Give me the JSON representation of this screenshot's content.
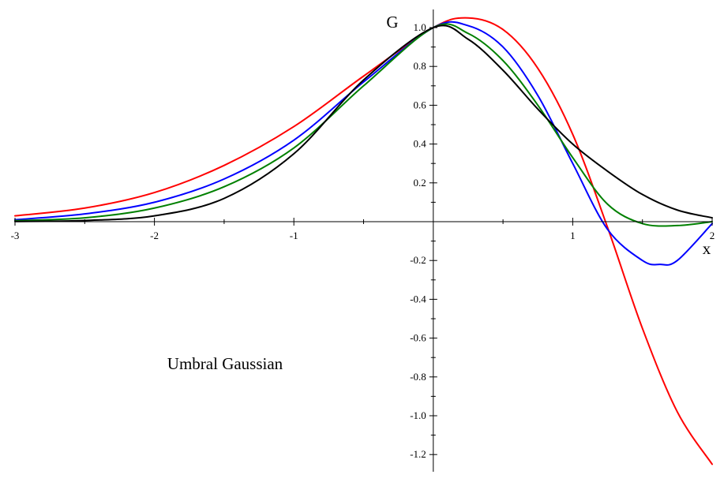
{
  "chart_data": {
    "type": "line",
    "title": "",
    "xlabel": "x",
    "ylabel": "G",
    "xlim": [
      -3,
      2
    ],
    "ylim": [
      -1.3,
      1.1
    ],
    "grid": false,
    "x_ticks": [
      -3,
      -2,
      -1,
      1,
      2
    ],
    "x_tick_labels": [
      "-3",
      "-2",
      "-1",
      "1",
      "2"
    ],
    "y_ticks": [
      -1.2,
      -1.0,
      -0.8,
      -0.6,
      -0.4,
      -0.2,
      0.2,
      0.4,
      0.6,
      0.8,
      1.0
    ],
    "y_tick_labels": [
      "-1.2",
      "-1.0",
      "-0.8",
      "-0.6",
      "-0.4",
      "-0.2",
      "0.2",
      "0.4",
      "0.6",
      "0.8",
      "1.0"
    ],
    "annotation": "Umbral Gaussian",
    "series": [
      {
        "color": "#ff0000",
        "x": [
          -3.0,
          -2.5,
          -2.0,
          -1.5,
          -1.0,
          -0.5,
          0.0,
          0.25,
          0.5,
          0.75,
          1.0,
          1.25,
          1.5,
          1.75,
          2.0
        ],
        "y": [
          0.03,
          0.07,
          0.15,
          0.29,
          0.49,
          0.75,
          1.0,
          1.05,
          0.99,
          0.79,
          0.45,
          -0.03,
          -0.55,
          -0.98,
          -1.25
        ]
      },
      {
        "color": "#0000ff",
        "x": [
          -3.0,
          -2.5,
          -2.0,
          -1.5,
          -1.0,
          -0.5,
          0.0,
          0.25,
          0.5,
          0.75,
          1.0,
          1.25,
          1.5,
          1.625,
          1.75,
          2.0
        ],
        "y": [
          0.01,
          0.04,
          0.1,
          0.22,
          0.42,
          0.72,
          1.0,
          1.01,
          0.9,
          0.65,
          0.3,
          -0.04,
          -0.2,
          -0.22,
          -0.2,
          -0.01
        ]
      },
      {
        "color": "#008000",
        "x": [
          -3.0,
          -2.5,
          -2.0,
          -1.5,
          -1.0,
          -0.5,
          0.0,
          0.25,
          0.5,
          0.75,
          1.0,
          1.25,
          1.5,
          1.75,
          2.0
        ],
        "y": [
          0.005,
          0.02,
          0.07,
          0.18,
          0.38,
          0.7,
          1.0,
          0.97,
          0.83,
          0.6,
          0.33,
          0.09,
          -0.01,
          -0.02,
          0.0
        ]
      },
      {
        "color": "#000000",
        "x": [
          -3.0,
          -2.5,
          -2.0,
          -1.5,
          -1.0,
          -0.5,
          0.0,
          0.25,
          0.5,
          0.75,
          1.0,
          1.25,
          1.5,
          1.75,
          2.0
        ],
        "y": [
          0.001,
          0.006,
          0.03,
          0.12,
          0.35,
          0.73,
          1.0,
          0.94,
          0.78,
          0.58,
          0.4,
          0.26,
          0.14,
          0.06,
          0.02
        ]
      }
    ]
  }
}
